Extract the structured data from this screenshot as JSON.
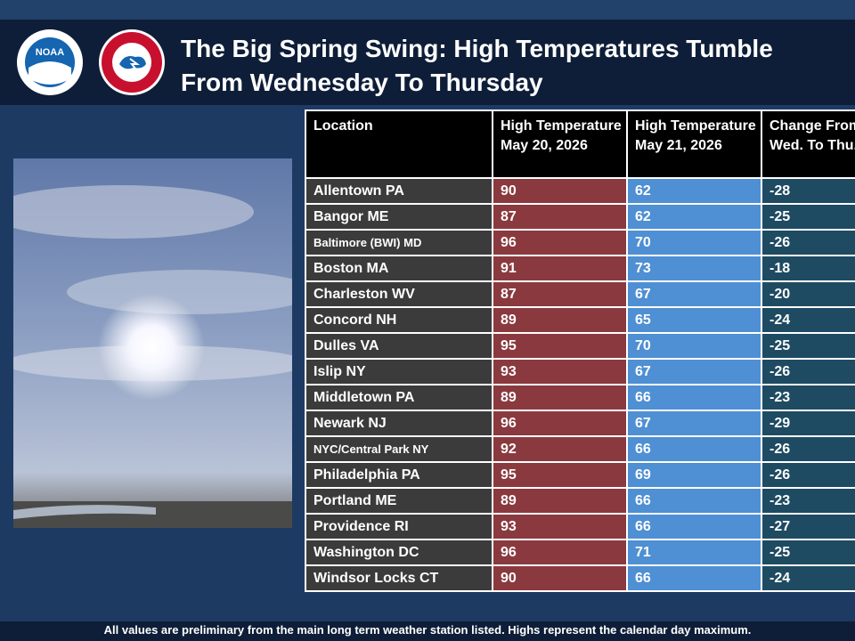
{
  "header": {
    "title": "The Big Spring Swing: High Temperatures Tumble From Wednesday To Thursday",
    "logos": {
      "noaa": "NOAA"
    }
  },
  "table": {
    "columns": [
      "Location",
      "High Temperature May 20, 2026",
      "High Temperature May 21, 2026",
      "Change From Wed. To Thu."
    ],
    "rows": [
      [
        "Allentown PA",
        90,
        62,
        -28
      ],
      [
        "Bangor ME",
        87,
        62,
        -25
      ],
      [
        "Baltimore (BWI) MD",
        96,
        70,
        -26
      ],
      [
        "Boston MA",
        91,
        73,
        -18
      ],
      [
        "Charleston WV",
        87,
        67,
        -20
      ],
      [
        "Concord NH",
        89,
        65,
        -24
      ],
      [
        "Dulles VA",
        95,
        70,
        -25
      ],
      [
        "Islip NY",
        93,
        67,
        -26
      ],
      [
        "Middletown PA",
        89,
        66,
        -23
      ],
      [
        "Newark NJ",
        96,
        67,
        -29
      ],
      [
        "NYC/Central Park NY",
        92,
        66,
        -26
      ],
      [
        "Philadelphia PA",
        95,
        69,
        -26
      ],
      [
        "Portland ME",
        89,
        66,
        -23
      ],
      [
        "Providence RI",
        93,
        66,
        -27
      ],
      [
        "Washington DC",
        96,
        71,
        -25
      ],
      [
        "Windsor Locks CT",
        90,
        66,
        -24
      ]
    ]
  },
  "footer": {
    "note": "All values are preliminary from the main long term weather station listed. Highs represent the calendar day maximum."
  }
}
